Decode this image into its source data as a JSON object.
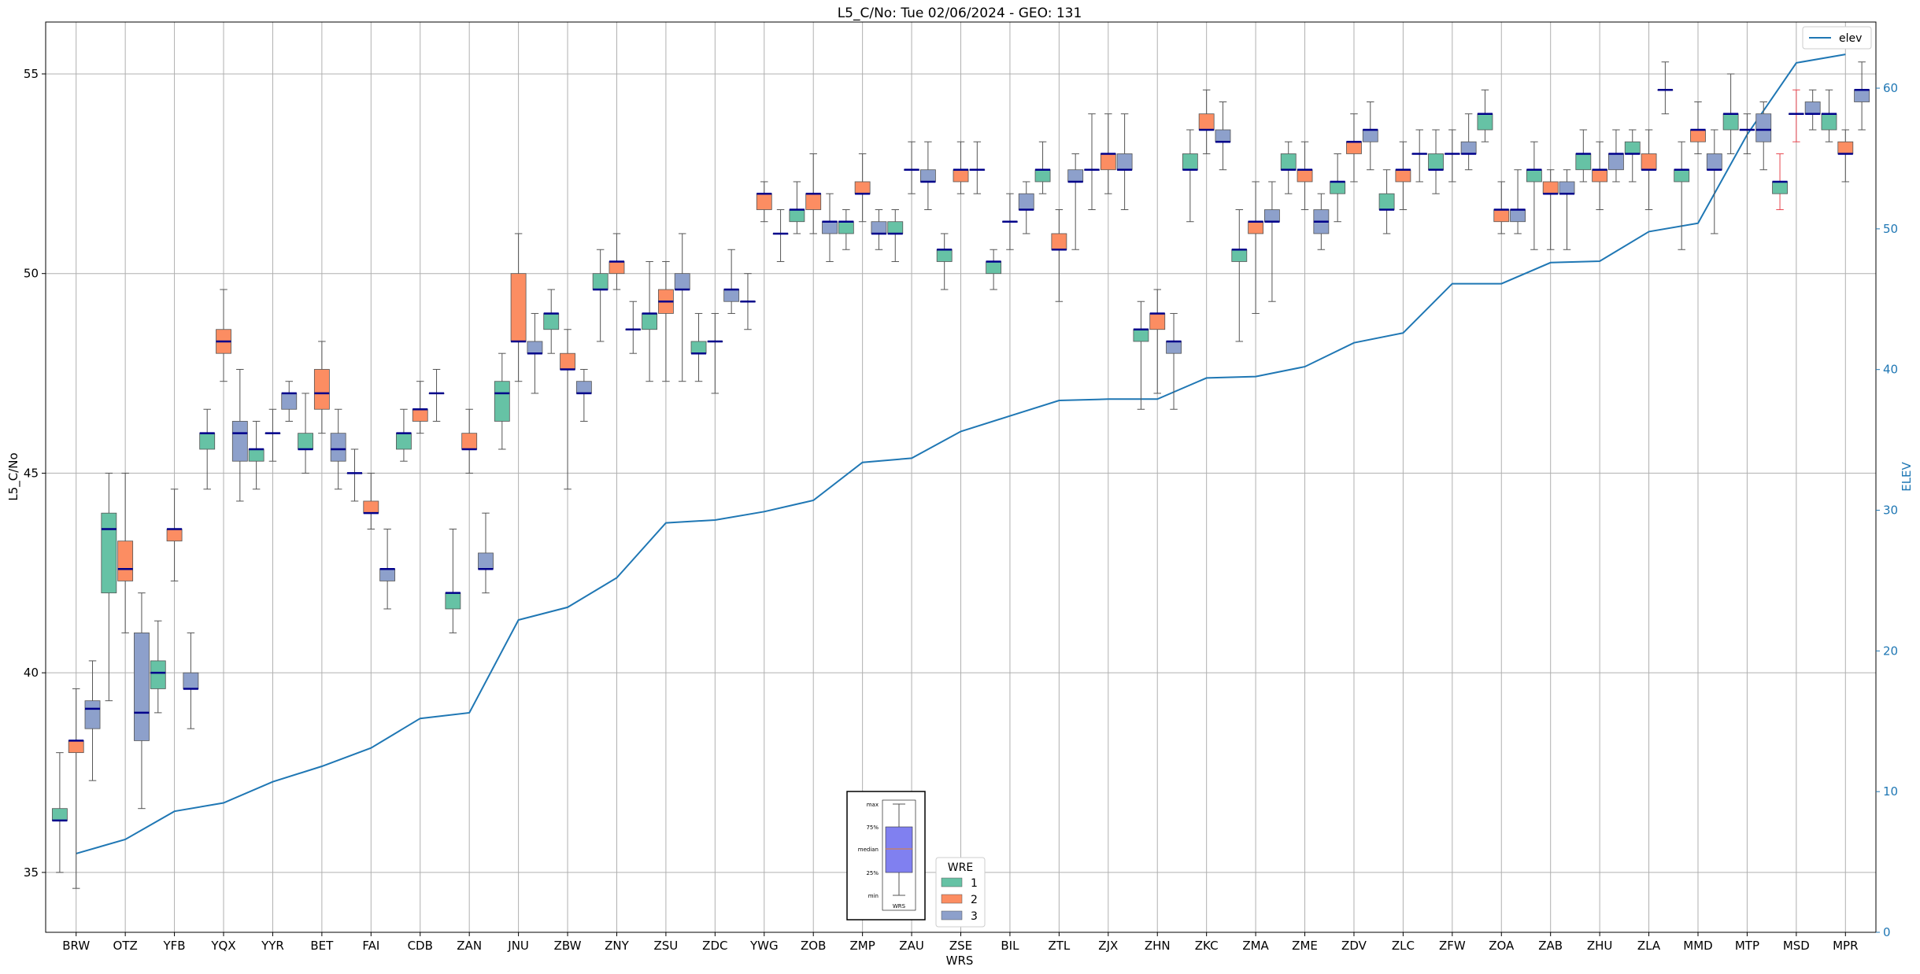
{
  "chart_data": {
    "type": "box",
    "title": "L5_C/No: Tue 02/06/2024 - GEO: 131",
    "xlabel": "WRS",
    "ylabel": "L5_C/No",
    "ylabel_right": "ELEV",
    "ylim": [
      33.5,
      56.3
    ],
    "ylim_right": [
      0,
      64.7
    ],
    "yticks": [
      35,
      40,
      45,
      50,
      55
    ],
    "yticks_right": [
      0,
      10,
      20,
      30,
      40,
      50,
      60
    ],
    "grid": true,
    "colors": {
      "1": "#66c2a5",
      "2": "#fc8d62",
      "3": "#8da0cb",
      "median": "#00008b",
      "whisker": "#555555",
      "elev": "#1f77b4",
      "outlier_whisker": "#e8464f"
    },
    "categories": [
      "BRW",
      "OTZ",
      "YFB",
      "YQX",
      "YYR",
      "BET",
      "FAI",
      "CDB",
      "ZAN",
      "JNU",
      "ZBW",
      "ZNY",
      "ZSU",
      "ZDC",
      "YWG",
      "ZOB",
      "ZMP",
      "ZAU",
      "ZSE",
      "BIL",
      "ZTL",
      "ZJX",
      "ZHN",
      "ZKC",
      "ZMA",
      "ZME",
      "ZDV",
      "ZLC",
      "ZFW",
      "ZOA",
      "ZAB",
      "ZHU",
      "ZLA",
      "MMD",
      "MTP",
      "MSD",
      "MPR"
    ],
    "elev": [
      5.6,
      6.6,
      8.6,
      9.2,
      10.7,
      11.8,
      13.1,
      15.2,
      15.6,
      22.2,
      23.1,
      25.2,
      29.1,
      29.3,
      29.9,
      30.7,
      33.4,
      33.7,
      35.6,
      36.7,
      37.8,
      37.9,
      37.9,
      39.4,
      39.5,
      40.2,
      41.9,
      42.6,
      46.1,
      46.1,
      47.6,
      47.7,
      49.8,
      50.4,
      56.7,
      61.8,
      62.4
    ],
    "boxes": [
      {
        "cat": "BRW",
        "wre": 1,
        "min": 35.0,
        "q1": 36.3,
        "med": 36.3,
        "q3": 36.6,
        "max": 38.0
      },
      {
        "cat": "BRW",
        "wre": 2,
        "min": 34.6,
        "q1": 38.0,
        "med": 38.3,
        "q3": 38.3,
        "max": 39.6
      },
      {
        "cat": "BRW",
        "wre": 3,
        "min": 37.3,
        "q1": 38.6,
        "med": 39.1,
        "q3": 39.3,
        "max": 40.3
      },
      {
        "cat": "OTZ",
        "wre": 1,
        "min": 39.3,
        "q1": 42.0,
        "med": 43.6,
        "q3": 44.0,
        "max": 45.0
      },
      {
        "cat": "OTZ",
        "wre": 2,
        "min": 41.0,
        "q1": 42.3,
        "med": 42.6,
        "q3": 43.3,
        "max": 45.0
      },
      {
        "cat": "OTZ",
        "wre": 3,
        "min": 36.6,
        "q1": 38.3,
        "med": 39.0,
        "q3": 41.0,
        "max": 42.0
      },
      {
        "cat": "YFB",
        "wre": 1,
        "min": 39.0,
        "q1": 39.6,
        "med": 40.0,
        "q3": 40.3,
        "max": 41.3
      },
      {
        "cat": "YFB",
        "wre": 2,
        "min": 42.3,
        "q1": 43.3,
        "med": 43.6,
        "q3": 43.6,
        "max": 44.6
      },
      {
        "cat": "YFB",
        "wre": 3,
        "min": 38.6,
        "q1": 39.6,
        "med": 39.6,
        "q3": 40.0,
        "max": 41.0
      },
      {
        "cat": "YQX",
        "wre": 1,
        "min": 44.6,
        "q1": 45.6,
        "med": 46.0,
        "q3": 46.0,
        "max": 46.6
      },
      {
        "cat": "YQX",
        "wre": 2,
        "min": 47.3,
        "q1": 48.0,
        "med": 48.3,
        "q3": 48.6,
        "max": 49.6
      },
      {
        "cat": "YQX",
        "wre": 3,
        "min": 44.3,
        "q1": 45.3,
        "med": 46.0,
        "q3": 46.3,
        "max": 47.6
      },
      {
        "cat": "YYR",
        "wre": 1,
        "min": 44.6,
        "q1": 45.3,
        "med": 45.6,
        "q3": 45.6,
        "max": 46.3
      },
      {
        "cat": "YYR",
        "wre": 2,
        "min": 45.3,
        "q1": 46.0,
        "med": 46.0,
        "q3": 46.0,
        "max": 46.6
      },
      {
        "cat": "YYR",
        "wre": 3,
        "min": 46.3,
        "q1": 46.6,
        "med": 47.0,
        "q3": 47.0,
        "max": 47.3
      },
      {
        "cat": "BET",
        "wre": 1,
        "min": 45.0,
        "q1": 45.6,
        "med": 45.6,
        "q3": 46.0,
        "max": 47.0
      },
      {
        "cat": "BET",
        "wre": 2,
        "min": 46.0,
        "q1": 46.6,
        "med": 47.0,
        "q3": 47.6,
        "max": 48.3
      },
      {
        "cat": "BET",
        "wre": 3,
        "min": 44.6,
        "q1": 45.3,
        "med": 45.6,
        "q3": 46.0,
        "max": 46.6
      },
      {
        "cat": "FAI",
        "wre": 1,
        "min": 44.3,
        "q1": 45.0,
        "med": 45.0,
        "q3": 45.0,
        "max": 45.6
      },
      {
        "cat": "FAI",
        "wre": 2,
        "min": 43.6,
        "q1": 44.0,
        "med": 44.0,
        "q3": 44.3,
        "max": 45.0
      },
      {
        "cat": "FAI",
        "wre": 3,
        "min": 41.6,
        "q1": 42.3,
        "med": 42.6,
        "q3": 42.6,
        "max": 43.6
      },
      {
        "cat": "CDB",
        "wre": 1,
        "min": 45.3,
        "q1": 45.6,
        "med": 46.0,
        "q3": 46.0,
        "max": 46.6
      },
      {
        "cat": "CDB",
        "wre": 2,
        "min": 46.0,
        "q1": 46.3,
        "med": 46.6,
        "q3": 46.6,
        "max": 47.3
      },
      {
        "cat": "CDB",
        "wre": 3,
        "min": 46.3,
        "q1": 47.0,
        "med": 47.0,
        "q3": 47.0,
        "max": 47.6
      },
      {
        "cat": "ZAN",
        "wre": 1,
        "min": 41.0,
        "q1": 41.6,
        "med": 42.0,
        "q3": 42.0,
        "max": 43.6
      },
      {
        "cat": "ZAN",
        "wre": 2,
        "min": 45.0,
        "q1": 45.6,
        "med": 45.6,
        "q3": 46.0,
        "max": 46.6
      },
      {
        "cat": "ZAN",
        "wre": 3,
        "min": 42.0,
        "q1": 42.6,
        "med": 42.6,
        "q3": 43.0,
        "max": 44.0
      },
      {
        "cat": "JNU",
        "wre": 1,
        "min": 45.6,
        "q1": 46.3,
        "med": 47.0,
        "q3": 47.3,
        "max": 48.0
      },
      {
        "cat": "JNU",
        "wre": 2,
        "min": 47.3,
        "q1": 48.3,
        "med": 48.3,
        "q3": 50.0,
        "max": 51.0
      },
      {
        "cat": "JNU",
        "wre": 3,
        "min": 47.0,
        "q1": 48.0,
        "med": 48.0,
        "q3": 48.3,
        "max": 49.0
      },
      {
        "cat": "ZBW",
        "wre": 1,
        "min": 48.0,
        "q1": 48.6,
        "med": 49.0,
        "q3": 49.0,
        "max": 49.6
      },
      {
        "cat": "ZBW",
        "wre": 2,
        "min": 44.6,
        "q1": 47.6,
        "med": 47.6,
        "q3": 48.0,
        "max": 48.6
      },
      {
        "cat": "ZBW",
        "wre": 3,
        "min": 46.3,
        "q1": 47.0,
        "med": 47.0,
        "q3": 47.3,
        "max": 47.6
      },
      {
        "cat": "ZNY",
        "wre": 1,
        "min": 48.3,
        "q1": 49.6,
        "med": 49.6,
        "q3": 50.0,
        "max": 50.6
      },
      {
        "cat": "ZNY",
        "wre": 2,
        "min": 49.6,
        "q1": 50.0,
        "med": 50.3,
        "q3": 50.3,
        "max": 51.0
      },
      {
        "cat": "ZNY",
        "wre": 3,
        "min": 48.0,
        "q1": 48.6,
        "med": 48.6,
        "q3": 48.6,
        "max": 49.3
      },
      {
        "cat": "ZSU",
        "wre": 1,
        "min": 47.3,
        "q1": 48.6,
        "med": 49.0,
        "q3": 49.0,
        "max": 50.3
      },
      {
        "cat": "ZSU",
        "wre": 2,
        "min": 47.3,
        "q1": 49.0,
        "med": 49.3,
        "q3": 49.6,
        "max": 50.3
      },
      {
        "cat": "ZSU",
        "wre": 3,
        "min": 47.3,
        "q1": 49.6,
        "med": 49.6,
        "q3": 50.0,
        "max": 51.0
      },
      {
        "cat": "ZDC",
        "wre": 1,
        "min": 47.3,
        "q1": 48.0,
        "med": 48.0,
        "q3": 48.3,
        "max": 49.0
      },
      {
        "cat": "ZDC",
        "wre": 2,
        "min": 47.0,
        "q1": 48.3,
        "med": 48.3,
        "q3": 48.3,
        "max": 49.0
      },
      {
        "cat": "ZDC",
        "wre": 3,
        "min": 49.0,
        "q1": 49.3,
        "med": 49.6,
        "q3": 49.6,
        "max": 50.6
      },
      {
        "cat": "YWG",
        "wre": 1,
        "min": 48.6,
        "q1": 49.3,
        "med": 49.3,
        "q3": 49.3,
        "max": 50.0
      },
      {
        "cat": "YWG",
        "wre": 2,
        "min": 51.3,
        "q1": 51.6,
        "med": 52.0,
        "q3": 52.0,
        "max": 52.3
      },
      {
        "cat": "YWG",
        "wre": 3,
        "min": 50.3,
        "q1": 51.0,
        "med": 51.0,
        "q3": 51.0,
        "max": 51.6
      },
      {
        "cat": "ZOB",
        "wre": 1,
        "min": 51.0,
        "q1": 51.3,
        "med": 51.6,
        "q3": 51.6,
        "max": 52.3
      },
      {
        "cat": "ZOB",
        "wre": 2,
        "min": 51.0,
        "q1": 51.6,
        "med": 52.0,
        "q3": 52.0,
        "max": 53.0
      },
      {
        "cat": "ZOB",
        "wre": 3,
        "min": 50.3,
        "q1": 51.0,
        "med": 51.3,
        "q3": 51.3,
        "max": 52.0
      },
      {
        "cat": "ZMP",
        "wre": 1,
        "min": 50.6,
        "q1": 51.0,
        "med": 51.3,
        "q3": 51.3,
        "max": 51.6
      },
      {
        "cat": "ZMP",
        "wre": 2,
        "min": 51.3,
        "q1": 52.0,
        "med": 52.0,
        "q3": 52.3,
        "max": 53.0
      },
      {
        "cat": "ZMP",
        "wre": 3,
        "min": 50.6,
        "q1": 51.0,
        "med": 51.0,
        "q3": 51.3,
        "max": 51.6
      },
      {
        "cat": "ZAU",
        "wre": 1,
        "min": 50.3,
        "q1": 51.0,
        "med": 51.0,
        "q3": 51.3,
        "max": 51.6
      },
      {
        "cat": "ZAU",
        "wre": 2,
        "min": 52.0,
        "q1": 52.6,
        "med": 52.6,
        "q3": 52.6,
        "max": 53.3
      },
      {
        "cat": "ZAU",
        "wre": 3,
        "min": 51.6,
        "q1": 52.3,
        "med": 52.3,
        "q3": 52.6,
        "max": 53.3
      },
      {
        "cat": "ZSE",
        "wre": 1,
        "min": 49.6,
        "q1": 50.3,
        "med": 50.6,
        "q3": 50.6,
        "max": 51.0
      },
      {
        "cat": "ZSE",
        "wre": 2,
        "min": 52.0,
        "q1": 52.3,
        "med": 52.6,
        "q3": 52.6,
        "max": 53.3
      },
      {
        "cat": "ZSE",
        "wre": 3,
        "min": 52.0,
        "q1": 52.6,
        "med": 52.6,
        "q3": 52.6,
        "max": 53.3
      },
      {
        "cat": "BIL",
        "wre": 1,
        "min": 49.6,
        "q1": 50.0,
        "med": 50.3,
        "q3": 50.3,
        "max": 50.6
      },
      {
        "cat": "BIL",
        "wre": 2,
        "min": 50.6,
        "q1": 51.3,
        "med": 51.3,
        "q3": 51.3,
        "max": 52.0
      },
      {
        "cat": "BIL",
        "wre": 3,
        "min": 51.0,
        "q1": 51.6,
        "med": 51.6,
        "q3": 52.0,
        "max": 52.3
      },
      {
        "cat": "ZTL",
        "wre": 1,
        "min": 52.0,
        "q1": 52.3,
        "med": 52.6,
        "q3": 52.6,
        "max": 53.3
      },
      {
        "cat": "ZTL",
        "wre": 2,
        "min": 49.3,
        "q1": 50.6,
        "med": 50.6,
        "q3": 51.0,
        "max": 51.6
      },
      {
        "cat": "ZTL",
        "wre": 3,
        "min": 50.6,
        "q1": 52.3,
        "med": 52.3,
        "q3": 52.6,
        "max": 53.0
      },
      {
        "cat": "ZJX",
        "wre": 1,
        "min": 51.6,
        "q1": 52.6,
        "med": 52.6,
        "q3": 52.6,
        "max": 54.0
      },
      {
        "cat": "ZJX",
        "wre": 2,
        "min": 52.0,
        "q1": 52.6,
        "med": 53.0,
        "q3": 53.0,
        "max": 54.0
      },
      {
        "cat": "ZJX",
        "wre": 3,
        "min": 51.6,
        "q1": 52.6,
        "med": 52.6,
        "q3": 53.0,
        "max": 54.0
      },
      {
        "cat": "ZHN",
        "wre": 1,
        "min": 46.6,
        "q1": 48.3,
        "med": 48.6,
        "q3": 48.6,
        "max": 49.3
      },
      {
        "cat": "ZHN",
        "wre": 2,
        "min": 47.0,
        "q1": 48.6,
        "med": 49.0,
        "q3": 49.0,
        "max": 49.6
      },
      {
        "cat": "ZHN",
        "wre": 3,
        "min": 46.6,
        "q1": 48.0,
        "med": 48.3,
        "q3": 48.3,
        "max": 49.0
      },
      {
        "cat": "ZKC",
        "wre": 1,
        "min": 51.3,
        "q1": 52.6,
        "med": 52.6,
        "q3": 53.0,
        "max": 53.6
      },
      {
        "cat": "ZKC",
        "wre": 2,
        "min": 53.0,
        "q1": 53.6,
        "med": 53.6,
        "q3": 54.0,
        "max": 54.6
      },
      {
        "cat": "ZKC",
        "wre": 3,
        "min": 52.6,
        "q1": 53.3,
        "med": 53.3,
        "q3": 53.6,
        "max": 54.3
      },
      {
        "cat": "ZMA",
        "wre": 1,
        "min": 48.3,
        "q1": 50.3,
        "med": 50.6,
        "q3": 50.6,
        "max": 51.6
      },
      {
        "cat": "ZMA",
        "wre": 2,
        "min": 49.0,
        "q1": 51.0,
        "med": 51.3,
        "q3": 51.3,
        "max": 52.3
      },
      {
        "cat": "ZMA",
        "wre": 3,
        "min": 49.3,
        "q1": 51.3,
        "med": 51.3,
        "q3": 51.6,
        "max": 52.3
      },
      {
        "cat": "ZME",
        "wre": 1,
        "min": 52.0,
        "q1": 52.6,
        "med": 52.6,
        "q3": 53.0,
        "max": 53.3
      },
      {
        "cat": "ZME",
        "wre": 2,
        "min": 51.6,
        "q1": 52.3,
        "med": 52.6,
        "q3": 52.6,
        "max": 53.3
      },
      {
        "cat": "ZME",
        "wre": 3,
        "min": 50.6,
        "q1": 51.0,
        "med": 51.3,
        "q3": 51.6,
        "max": 52.0
      },
      {
        "cat": "ZDV",
        "wre": 1,
        "min": 51.3,
        "q1": 52.0,
        "med": 52.3,
        "q3": 52.3,
        "max": 53.0
      },
      {
        "cat": "ZDV",
        "wre": 2,
        "min": 52.3,
        "q1": 53.0,
        "med": 53.3,
        "q3": 53.3,
        "max": 54.0
      },
      {
        "cat": "ZDV",
        "wre": 3,
        "min": 52.6,
        "q1": 53.3,
        "med": 53.6,
        "q3": 53.6,
        "max": 54.3
      },
      {
        "cat": "ZLC",
        "wre": 1,
        "min": 51.0,
        "q1": 51.6,
        "med": 51.6,
        "q3": 52.0,
        "max": 52.6
      },
      {
        "cat": "ZLC",
        "wre": 2,
        "min": 51.6,
        "q1": 52.3,
        "med": 52.6,
        "q3": 52.6,
        "max": 53.3
      },
      {
        "cat": "ZLC",
        "wre": 3,
        "min": 52.3,
        "q1": 53.0,
        "med": 53.0,
        "q3": 53.0,
        "max": 53.6
      },
      {
        "cat": "ZFW",
        "wre": 1,
        "min": 52.0,
        "q1": 52.6,
        "med": 52.6,
        "q3": 53.0,
        "max": 53.6
      },
      {
        "cat": "ZFW",
        "wre": 2,
        "min": 52.3,
        "q1": 53.0,
        "med": 53.0,
        "q3": 53.0,
        "max": 53.6
      },
      {
        "cat": "ZFW",
        "wre": 3,
        "min": 52.6,
        "q1": 53.0,
        "med": 53.0,
        "q3": 53.3,
        "max": 54.0
      },
      {
        "cat": "ZOA",
        "wre": 1,
        "min": 53.3,
        "q1": 53.6,
        "med": 54.0,
        "q3": 54.0,
        "max": 54.6
      },
      {
        "cat": "ZOA",
        "wre": 2,
        "min": 51.0,
        "q1": 51.3,
        "med": 51.6,
        "q3": 51.6,
        "max": 52.3
      },
      {
        "cat": "ZOA",
        "wre": 3,
        "min": 51.0,
        "q1": 51.3,
        "med": 51.6,
        "q3": 51.6,
        "max": 52.6
      },
      {
        "cat": "ZAB",
        "wre": 1,
        "min": 50.6,
        "q1": 52.3,
        "med": 52.6,
        "q3": 52.6,
        "max": 53.3
      },
      {
        "cat": "ZAB",
        "wre": 2,
        "min": 50.6,
        "q1": 52.0,
        "med": 52.0,
        "q3": 52.3,
        "max": 52.6
      },
      {
        "cat": "ZAB",
        "wre": 3,
        "min": 50.6,
        "q1": 52.0,
        "med": 52.0,
        "q3": 52.3,
        "max": 52.6
      },
      {
        "cat": "ZHU",
        "wre": 1,
        "min": 52.3,
        "q1": 52.6,
        "med": 53.0,
        "q3": 53.0,
        "max": 53.6
      },
      {
        "cat": "ZHU",
        "wre": 2,
        "min": 51.6,
        "q1": 52.3,
        "med": 52.6,
        "q3": 52.6,
        "max": 53.3
      },
      {
        "cat": "ZHU",
        "wre": 3,
        "min": 52.3,
        "q1": 52.6,
        "med": 53.0,
        "q3": 53.0,
        "max": 53.6
      },
      {
        "cat": "ZLA",
        "wre": 1,
        "min": 52.3,
        "q1": 53.0,
        "med": 53.0,
        "q3": 53.3,
        "max": 53.6
      },
      {
        "cat": "ZLA",
        "wre": 2,
        "min": 51.6,
        "q1": 52.6,
        "med": 52.6,
        "q3": 53.0,
        "max": 53.6
      },
      {
        "cat": "ZLA",
        "wre": 3,
        "min": 54.0,
        "q1": 54.6,
        "med": 54.6,
        "q3": 54.6,
        "max": 55.3
      },
      {
        "cat": "MMD",
        "wre": 1,
        "min": 50.6,
        "q1": 52.3,
        "med": 52.6,
        "q3": 52.6,
        "max": 53.3
      },
      {
        "cat": "MMD",
        "wre": 2,
        "min": 53.0,
        "q1": 53.3,
        "med": 53.6,
        "q3": 53.6,
        "max": 54.3
      },
      {
        "cat": "MMD",
        "wre": 3,
        "min": 51.0,
        "q1": 52.6,
        "med": 52.6,
        "q3": 53.0,
        "max": 53.6
      },
      {
        "cat": "MTP",
        "wre": 1,
        "min": 53.0,
        "q1": 53.6,
        "med": 54.0,
        "q3": 54.0,
        "max": 55.0
      },
      {
        "cat": "MTP",
        "wre": 2,
        "min": 53.0,
        "q1": 53.6,
        "med": 53.6,
        "q3": 53.6,
        "max": 54.0
      },
      {
        "cat": "MTP",
        "wre": 3,
        "min": 52.6,
        "q1": 53.3,
        "med": 53.6,
        "q3": 54.0,
        "max": 54.3
      },
      {
        "cat": "MSD",
        "wre": 1,
        "min": 51.6,
        "q1": 52.0,
        "med": 52.3,
        "q3": 52.3,
        "max": 53.0,
        "red": true
      },
      {
        "cat": "MSD",
        "wre": 2,
        "min": 53.3,
        "q1": 54.0,
        "med": 54.0,
        "q3": 54.0,
        "max": 54.6,
        "red": true
      },
      {
        "cat": "MSD",
        "wre": 3,
        "min": 53.6,
        "q1": 54.0,
        "med": 54.0,
        "q3": 54.3,
        "max": 54.6
      },
      {
        "cat": "MPR",
        "wre": 1,
        "min": 53.3,
        "q1": 53.6,
        "med": 54.0,
        "q3": 54.0,
        "max": 54.6
      },
      {
        "cat": "MPR",
        "wre": 2,
        "min": 52.3,
        "q1": 53.0,
        "med": 53.0,
        "q3": 53.3,
        "max": 53.6
      },
      {
        "cat": "MPR",
        "wre": 3,
        "min": 53.6,
        "q1": 54.3,
        "med": 54.6,
        "q3": 54.6,
        "max": 55.3
      }
    ],
    "legend_wre": {
      "title": "WRE",
      "entries": [
        "1",
        "2",
        "3"
      ]
    },
    "legend_elev": {
      "label": "elev",
      "position": "top-right"
    },
    "key_box": {
      "labels": [
        "max",
        "75%",
        "median",
        "25%",
        "min"
      ],
      "xlabel": "WRS"
    }
  }
}
